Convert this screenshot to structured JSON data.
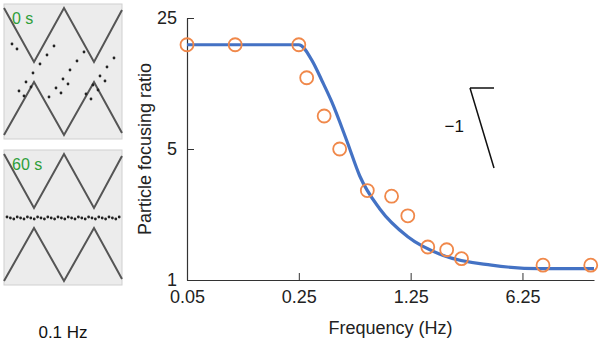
{
  "chart_data": {
    "type": "scatter",
    "x_label": "Frequency (Hz)",
    "y_label": "Particle focusing ratio",
    "log": true,
    "grid": false,
    "xlim": [
      0.05,
      17.5
    ],
    "ylim": [
      1,
      25
    ],
    "xticks": [
      0.05,
      0.25,
      1.25,
      6.25
    ],
    "yticks": [
      1,
      5,
      25
    ],
    "series": [
      {
        "type": "scatter",
        "color": "#f0884a",
        "marker": "open-circle",
        "x": [
          0.05,
          0.1,
          0.25,
          0.28,
          0.36,
          0.45,
          0.67,
          0.95,
          1.2,
          1.6,
          2.1,
          2.6,
          8.4,
          16.7
        ],
        "values": [
          18,
          18,
          18,
          12,
          7.5,
          5,
          3,
          2.8,
          2.2,
          1.5,
          1.45,
          1.3,
          1.2,
          1.2
        ]
      },
      {
        "type": "line",
        "color": "#4472c4",
        "line_style": "solid",
        "x": [
          0.05,
          0.1,
          0.25,
          0.3,
          0.35,
          0.4,
          0.5,
          0.6,
          0.8,
          1.2,
          2,
          4,
          8,
          17.5
        ],
        "values": [
          18,
          18,
          18,
          15,
          11.5,
          9,
          5.5,
          3.6,
          2.4,
          1.7,
          1.35,
          1.2,
          1.15,
          1.15
        ]
      }
    ],
    "annotations": [
      {
        "text": "−1"
      }
    ]
  },
  "images": [
    {
      "label": "0 s"
    },
    {
      "label": "60 s"
    }
  ],
  "caption": "0.1 Hz"
}
